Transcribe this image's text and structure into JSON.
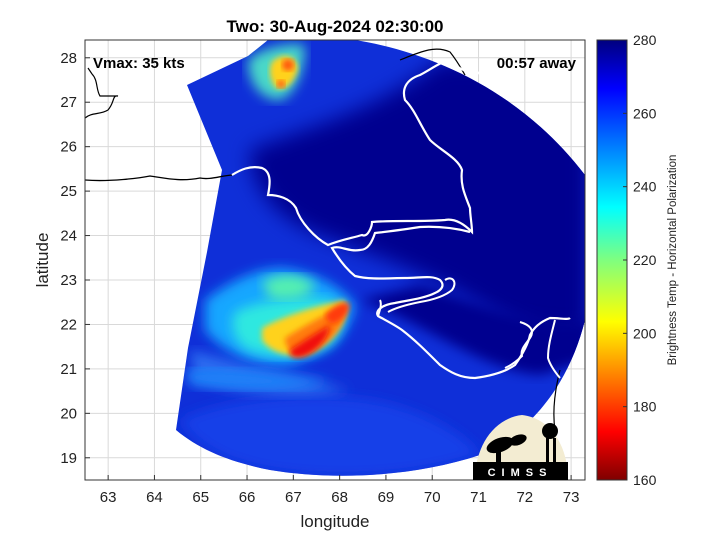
{
  "title": "Two: 30-Aug-2024 02:30:00",
  "vmax_label": "Vmax: 35 kts",
  "time_away_label": "00:57 away",
  "logo_text": "CIMSS",
  "chart_data": {
    "type": "heatmap",
    "title": "Two: 30-Aug-2024 02:30:00",
    "xlabel": "longitude",
    "ylabel": "latitude",
    "xlim": [
      62.5,
      73.3
    ],
    "ylim": [
      18.5,
      28.4
    ],
    "x_ticks": [
      63,
      64,
      65,
      66,
      67,
      68,
      69,
      70,
      71,
      72,
      73
    ],
    "y_ticks": [
      19,
      20,
      21,
      22,
      23,
      24,
      25,
      26,
      27,
      28
    ],
    "grid": true,
    "colorbar": {
      "label": "Brightness Temp - Horizontal Polarization",
      "range": [
        160,
        280
      ],
      "ticks": [
        160,
        180,
        200,
        220,
        240,
        260,
        280
      ],
      "colormap": "jet"
    },
    "swath_center": [
      68.9,
      23.6
    ],
    "cold_features": [
      {
        "lon": 67.4,
        "lat": 21.5,
        "value": 190
      },
      {
        "lon": 67.8,
        "lat": 21.8,
        "value": 197
      },
      {
        "lon": 68.1,
        "lat": 22.3,
        "value": 205
      },
      {
        "lon": 66.5,
        "lat": 22.0,
        "value": 225
      },
      {
        "lon": 66.6,
        "lat": 22.9,
        "value": 238
      },
      {
        "lon": 66.9,
        "lat": 27.9,
        "value": 200
      },
      {
        "lon": 67.0,
        "lat": 27.4,
        "value": 215
      },
      {
        "lon": 65.5,
        "lat": 21.1,
        "value": 240
      }
    ]
  },
  "colors": {
    "background": "#ffffff",
    "land_fill": "#00007f",
    "coastline": "#ffffff",
    "grid": "#d9d9d9"
  }
}
